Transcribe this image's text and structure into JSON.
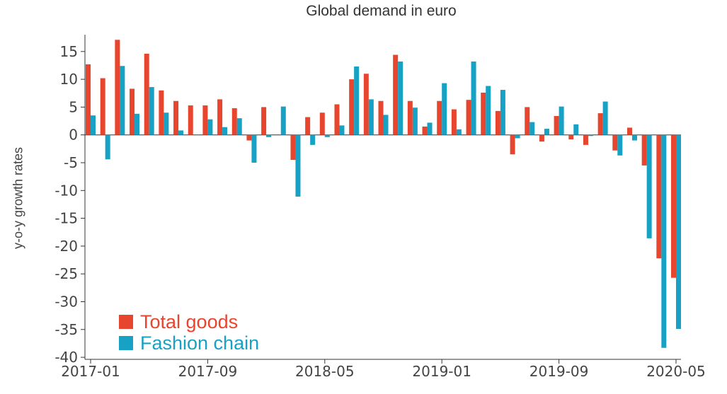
{
  "chart_data": {
    "type": "bar",
    "title": "Global demand in euro",
    "ylabel": "y-o-y growth rates",
    "xlabel": "",
    "ylim": [
      -40,
      18
    ],
    "yticks": [
      15,
      10,
      5,
      0,
      -5,
      -10,
      -15,
      -20,
      -25,
      -30,
      -35,
      -40
    ],
    "ytick_labels": [
      "15",
      "10",
      "5",
      "0",
      "-5",
      "-10",
      "-15",
      "-20",
      "-25",
      "-30",
      "-35",
      "-40"
    ],
    "x_tick_labels": [
      "2017-01",
      "2017-09",
      "2018-05",
      "2019-01",
      "2019-09",
      "2020-05"
    ],
    "categories": [
      "2017-01",
      "2017-02",
      "2017-03",
      "2017-04",
      "2017-05",
      "2017-06",
      "2017-07",
      "2017-08",
      "2017-09",
      "2017-10",
      "2017-11",
      "2017-12",
      "2018-01",
      "2018-02",
      "2018-03",
      "2018-04",
      "2018-05",
      "2018-06",
      "2018-07",
      "2018-08",
      "2018-09",
      "2018-10",
      "2018-11",
      "2018-12",
      "2019-01",
      "2019-02",
      "2019-03",
      "2019-04",
      "2019-05",
      "2019-06",
      "2019-07",
      "2019-08",
      "2019-09",
      "2019-10",
      "2019-11",
      "2019-12",
      "2020-01",
      "2020-02",
      "2020-03",
      "2020-04",
      "2020-05"
    ],
    "series": [
      {
        "name": "Total goods",
        "color": "#e8452f",
        "values": [
          12.7,
          10.2,
          17.1,
          8.3,
          14.6,
          8.0,
          6.1,
          5.3,
          5.3,
          6.4,
          4.8,
          -1.0,
          5.0,
          0,
          -4.5,
          3.2,
          4.0,
          5.5,
          10.0,
          11.0,
          6.1,
          14.4,
          6.1,
          1.5,
          6.1,
          4.6,
          6.3,
          7.6,
          4.3,
          -3.5,
          5.0,
          -1.2,
          3.4,
          -0.8,
          -1.8,
          3.9,
          -2.8,
          1.3,
          -5.5,
          -22.2,
          -25.7
        ]
      },
      {
        "name": "Fashion chain",
        "color": "#17a1c4",
        "values": [
          3.5,
          -4.4,
          12.4,
          3.8,
          8.6,
          4.0,
          0.8,
          0,
          2.8,
          1.4,
          3.0,
          -5.0,
          -0.4,
          5.1,
          -11.1,
          -1.8,
          -0.4,
          1.7,
          12.3,
          6.4,
          3.6,
          13.2,
          4.9,
          2.2,
          9.3,
          1.0,
          13.2,
          8.8,
          8.1,
          -0.6,
          2.3,
          1.1,
          5.1,
          1.9,
          -0.2,
          6.0,
          -3.7,
          -1.0,
          -18.6,
          -38.3,
          -34.9
        ]
      }
    ],
    "legend_position": "bottom-left",
    "grid": false
  }
}
